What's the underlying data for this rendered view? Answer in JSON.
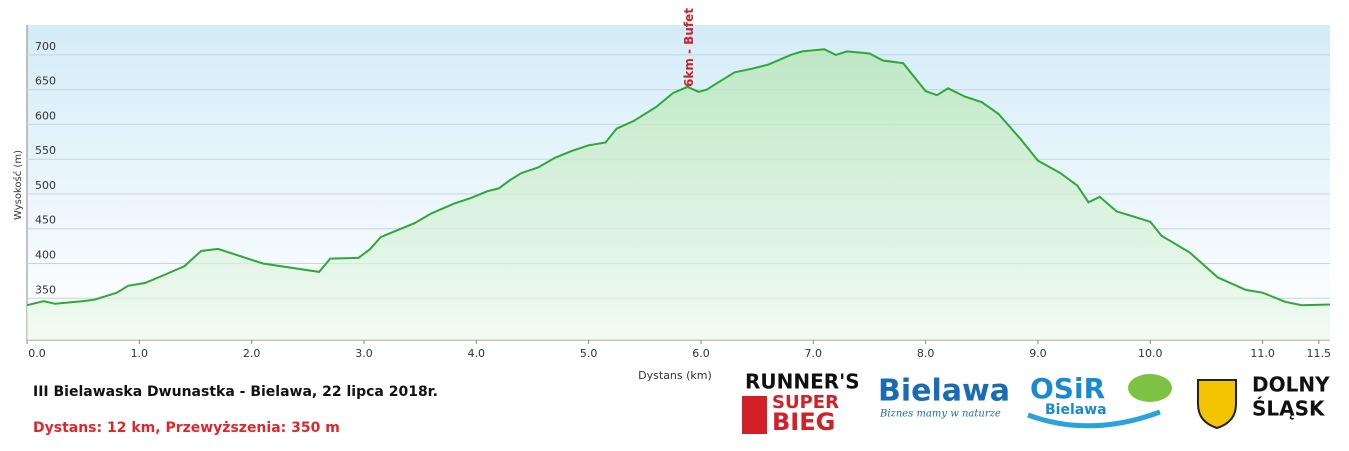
{
  "chart_data": {
    "type": "line",
    "xlabel": "Dystans  (km)",
    "ylabel": "Wysokość (m)",
    "annotation": "6km - Bufet",
    "annotation_x": 5.9,
    "x": [
      0,
      0.15,
      0.25,
      0.5,
      0.6,
      0.8,
      0.9,
      1.05,
      1.2,
      1.4,
      1.55,
      1.7,
      2.1,
      2.6,
      2.7,
      2.95,
      3.05,
      3.15,
      3.3,
      3.45,
      3.6,
      3.8,
      3.95,
      4.1,
      4.2,
      4.3,
      4.4,
      4.55,
      4.7,
      4.85,
      5.0,
      5.15,
      5.25,
      5.4,
      5.6,
      5.75,
      5.88,
      5.98,
      6.05,
      6.15,
      6.3,
      6.45,
      6.6,
      6.8,
      6.9,
      7.1,
      7.2,
      7.3,
      7.5,
      7.62,
      7.8,
      8.0,
      8.1,
      8.2,
      8.35,
      8.5,
      8.65,
      8.85,
      9.0,
      9.2,
      9.35,
      9.45,
      9.55,
      9.7,
      9.8,
      10.0,
      10.1,
      10.35,
      10.6,
      10.85,
      11.0,
      11.2,
      11.35,
      11.6
    ],
    "series": [
      {
        "color": "#2ea836",
        "values": [
          340,
          346,
          342,
          346,
          348,
          358,
          368,
          372,
          382,
          396,
          418,
          421,
          400,
          388,
          407,
          408,
          420,
          438,
          448,
          458,
          472,
          486,
          494,
          504,
          508,
          520,
          530,
          538,
          552,
          562,
          570,
          574,
          594,
          605,
          625,
          645,
          654,
          647,
          650,
          660,
          675,
          680,
          686,
          700,
          705,
          708,
          700,
          705,
          702,
          692,
          688,
          648,
          642,
          652,
          640,
          632,
          615,
          578,
          548,
          530,
          512,
          488,
          496,
          475,
          470,
          460,
          440,
          416,
          380,
          362,
          358,
          345,
          340,
          341
        ]
      }
    ],
    "xlim": [
      0,
      11.6
    ],
    "ylim": [
      290,
      743
    ],
    "xticks": [
      {
        "value": 0,
        "label": "0.0"
      },
      {
        "value": 1,
        "label": "1.0"
      },
      {
        "value": 2,
        "label": "2.0"
      },
      {
        "value": 3,
        "label": "3.0"
      },
      {
        "value": 4,
        "label": "4.0"
      },
      {
        "value": 5,
        "label": "5.0"
      },
      {
        "value": 6,
        "label": "6.0"
      },
      {
        "value": 7,
        "label": "7.0"
      },
      {
        "value": 8,
        "label": "8.0"
      },
      {
        "value": 9,
        "label": "9.0"
      },
      {
        "value": 10,
        "label": "10.0"
      },
      {
        "value": 11,
        "label": "11.0"
      },
      11.5
    ],
    "yticks": [
      350,
      400,
      450,
      500,
      550,
      600,
      650,
      700
    ],
    "grid": true
  },
  "footer": {
    "title": "III Bielawaska Dwunastka - Bielawa, 22 lipca 2018r.",
    "info": "Dystans: 12 km, Przewyższenia: 350 m"
  },
  "logos": {
    "runners": [
      "RUNNER'S",
      "SUPER",
      "BIEG"
    ],
    "bielawa": [
      "Bielawa",
      "Biznes mamy w naturze"
    ],
    "osir": [
      "OSiR",
      "Bielawa"
    ],
    "dolny": [
      "DOLNY",
      "ŚLĄSK"
    ]
  }
}
